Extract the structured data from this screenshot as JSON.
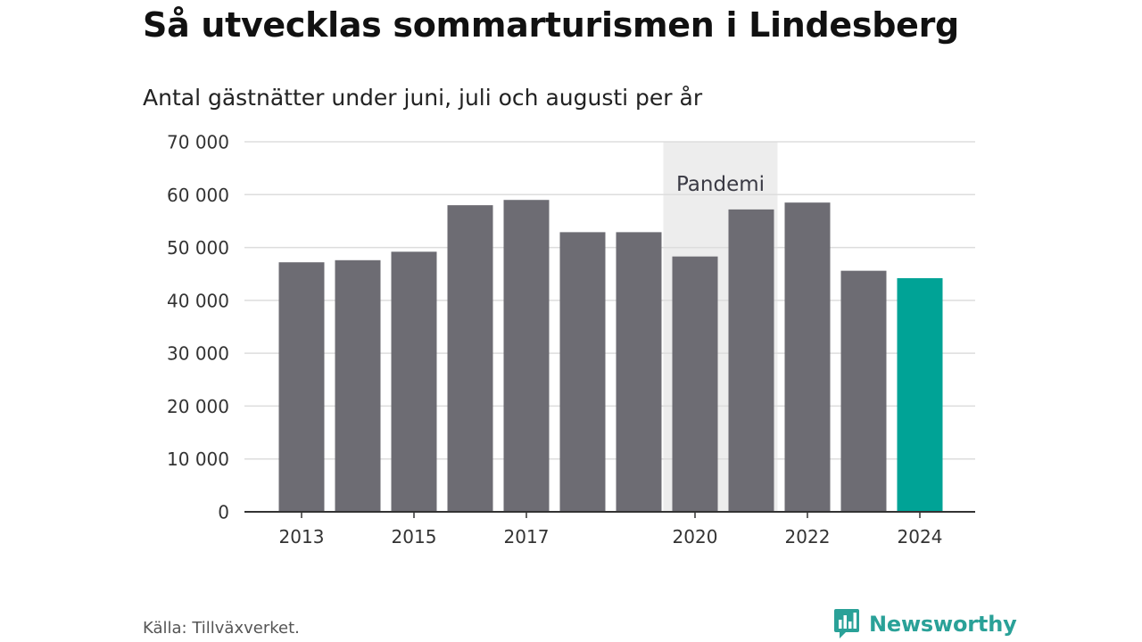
{
  "title": "Så utvecklas sommarturismen i Lindesberg",
  "subtitle": "Antal gästnätter under juni, juli och augusti per år",
  "source": "Källa: Tillväxverket.",
  "brand": {
    "name": "Newsworthy",
    "logo_icon": "newsworthy-chart-bubble-icon",
    "color": "#2aa198"
  },
  "chart_data": {
    "type": "bar",
    "title": "Så utvecklas sommarturismen i Lindesberg",
    "subtitle": "Antal gästnätter under juni, juli och augusti per år",
    "xlabel": "",
    "ylabel": "",
    "categories": [
      "2013",
      "2014",
      "2015",
      "2016",
      "2017",
      "2018",
      "2019",
      "2020",
      "2021",
      "2022",
      "2023",
      "2024"
    ],
    "values": [
      47200,
      47600,
      49200,
      58000,
      59000,
      52900,
      52900,
      48300,
      57200,
      58500,
      45600,
      44200
    ],
    "x_tick_labels": [
      "2013",
      "",
      "2015",
      "",
      "2017",
      "",
      "",
      "2020",
      "",
      "2022",
      "",
      "2024"
    ],
    "ylim": [
      0,
      70000
    ],
    "y_ticks": [
      0,
      10000,
      20000,
      30000,
      40000,
      50000,
      60000,
      70000
    ],
    "y_tick_labels": [
      "0",
      "10 000",
      "20 000",
      "30 000",
      "40 000",
      "50 000",
      "60 000",
      "70 000"
    ],
    "grid": true,
    "colors": {
      "bar": "#6d6c73",
      "highlight": "#00a396",
      "grid": "#dddddd",
      "axis": "#333333",
      "annotation_band": "#ededed"
    },
    "highlight_category": "2024",
    "annotations": [
      {
        "text": "Pandemi",
        "from_category": "2020",
        "to_category": "2021"
      }
    ]
  }
}
